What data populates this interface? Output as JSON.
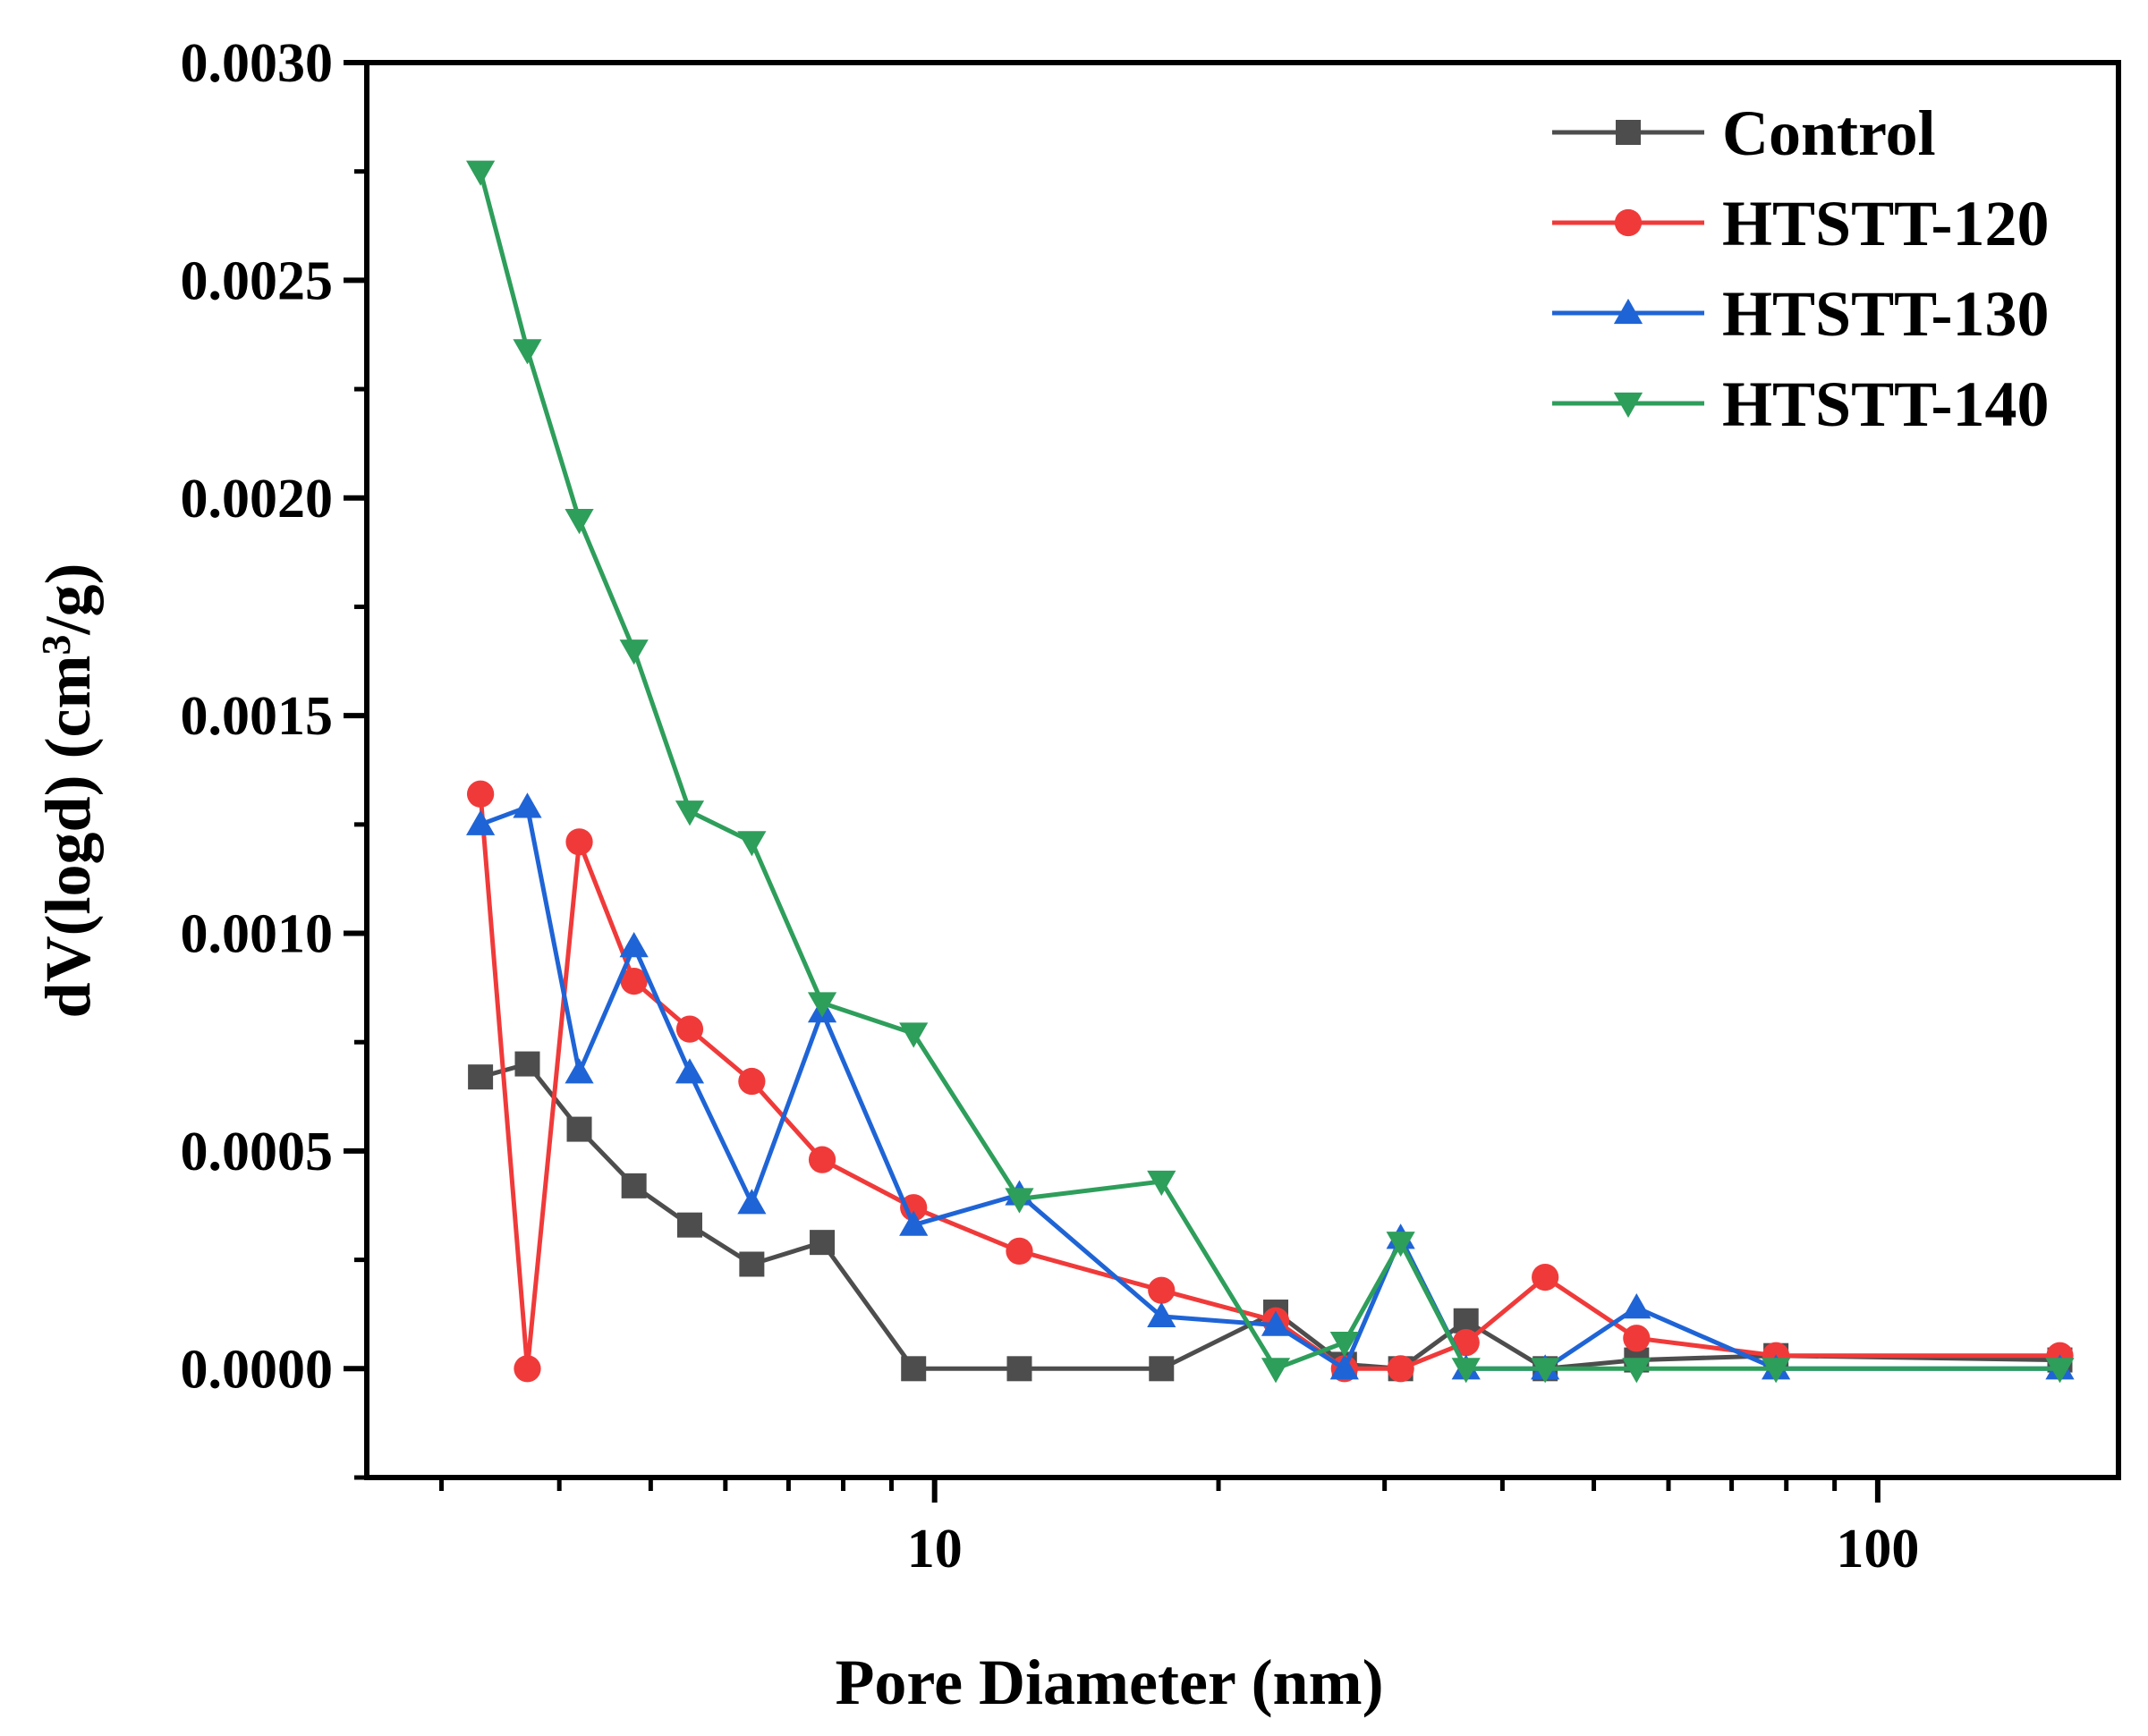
{
  "chart_data": {
    "type": "line",
    "title": "",
    "xlabel": "Pore Diameter (nm)",
    "ylabel_main": "dV(logd) (cm",
    "ylabel_sup": "3",
    "ylabel_end": "/g)",
    "xscale": "log",
    "xlim": [
      2.5,
      180
    ],
    "ylim": [
      -0.00025,
      0.003
    ],
    "yticks": [
      0.0,
      0.0005,
      0.001,
      0.0015,
      0.002,
      0.0025,
      0.003
    ],
    "ytick_labels": [
      "0.0000",
      "0.0005",
      "0.0010",
      "0.0015",
      "0.0020",
      "0.0025",
      "0.0030"
    ],
    "xticks": [
      10,
      100
    ],
    "xtick_labels": [
      "10",
      "100"
    ],
    "legend_position": "top-right",
    "x": [
      3.3,
      3.7,
      4.2,
      4.8,
      5.5,
      6.4,
      7.6,
      9.5,
      12.3,
      17.4,
      23.0,
      27.2,
      31.2,
      36.6,
      44.4,
      55.5,
      78.0,
      156.0
    ],
    "series": [
      {
        "name": "Control",
        "color": "#4d4d4d",
        "marker": "square",
        "values": [
          0.00067,
          0.0007,
          0.00055,
          0.00042,
          0.00033,
          0.00024,
          0.00029,
          0.0,
          0.0,
          0.0,
          0.00013,
          1e-05,
          0.0,
          0.00011,
          0.0,
          2e-05,
          3e-05,
          2e-05
        ]
      },
      {
        "name": "HTSTT-120",
        "color": "#f03a3a",
        "marker": "circle",
        "values": [
          0.00132,
          0.0,
          0.00121,
          0.00089,
          0.00078,
          0.00066,
          0.00048,
          0.00037,
          0.00027,
          0.00018,
          0.00011,
          0.0,
          0.0,
          6e-05,
          0.00021,
          7e-05,
          3e-05,
          3e-05
        ]
      },
      {
        "name": "HTSTT-130",
        "color": "#1f64d6",
        "marker": "triangle-up",
        "values": [
          0.00125,
          0.00129,
          0.00068,
          0.00097,
          0.00068,
          0.00038,
          0.00082,
          0.00033,
          0.0004,
          0.00012,
          0.0001,
          0.0,
          0.0003,
          0.0,
          0.0,
          0.00014,
          0.0,
          0.0
        ]
      },
      {
        "name": "HTSTT-140",
        "color": "#2e9e5b",
        "marker": "triangle-down",
        "values": [
          0.00275,
          0.00234,
          0.00195,
          0.00165,
          0.00128,
          0.00121,
          0.00084,
          0.00077,
          0.00039,
          0.00043,
          0.0,
          6e-05,
          0.00029,
          0.0,
          0.0,
          0.0,
          0.0,
          0.0
        ]
      }
    ]
  }
}
